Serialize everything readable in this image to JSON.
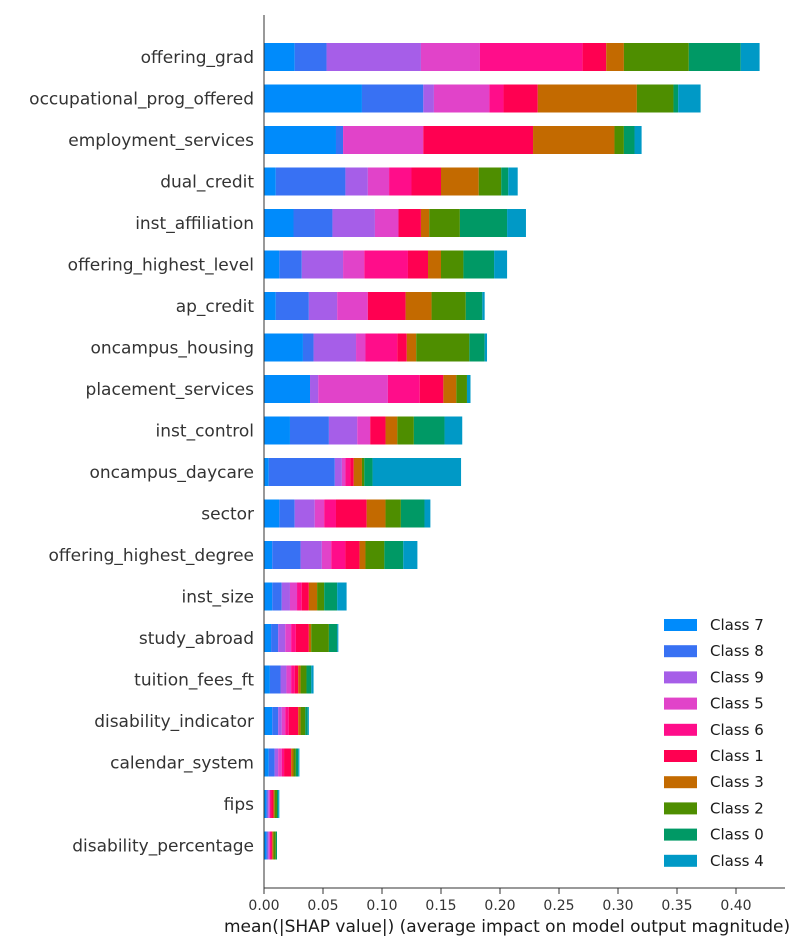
{
  "chart_data": {
    "type": "bar",
    "orientation": "horizontal",
    "stacked": true,
    "title": "",
    "xlabel": "mean(|SHAP value|) (average impact on model output magnitude)",
    "ylabel": "",
    "xlim": [
      0,
      0.44
    ],
    "x_ticks": [
      "0.00",
      "0.05",
      "0.10",
      "0.15",
      "0.20",
      "0.25",
      "0.30",
      "0.35",
      "0.40"
    ],
    "grid": false,
    "legend_position": "bottom-right",
    "categories": [
      "offering_grad",
      "occupational_prog_offered",
      "employment_services",
      "dual_credit",
      "inst_affiliation",
      "offering_highest_level",
      "ap_credit",
      "oncampus_housing",
      "placement_services",
      "inst_control",
      "oncampus_daycare",
      "sector",
      "offering_highest_degree",
      "inst_size",
      "study_abroad",
      "tuition_fees_ft",
      "disability_indicator",
      "calendar_system",
      "fips",
      "disability_percentage"
    ],
    "series": [
      {
        "name": "Class 7",
        "color": "#008bfb",
        "values": [
          0.026,
          0.083,
          0.061,
          0.01,
          0.025,
          0.013,
          0.01,
          0.033,
          0.039,
          0.022,
          0.004,
          0.013,
          0.007,
          0.007,
          0.006,
          0.005,
          0.007,
          0.004,
          0.002,
          0.002
        ]
      },
      {
        "name": "Class 8",
        "color": "#3871f3",
        "values": [
          0.027,
          0.052,
          0.006,
          0.059,
          0.033,
          0.019,
          0.028,
          0.009,
          0.0,
          0.033,
          0.056,
          0.013,
          0.024,
          0.008,
          0.006,
          0.009,
          0.005,
          0.005,
          0.001,
          0.001
        ]
      },
      {
        "name": "Class 9",
        "color": "#a65ee8",
        "values": [
          0.08,
          0.009,
          0.0,
          0.019,
          0.036,
          0.035,
          0.024,
          0.036,
          0.007,
          0.024,
          0.006,
          0.017,
          0.018,
          0.007,
          0.006,
          0.005,
          0.003,
          0.003,
          0.001,
          0.001
        ]
      },
      {
        "name": "Class 5",
        "color": "#e143c9",
        "values": [
          0.05,
          0.047,
          0.068,
          0.018,
          0.02,
          0.018,
          0.026,
          0.008,
          0.059,
          0.011,
          0.003,
          0.008,
          0.008,
          0.006,
          0.005,
          0.004,
          0.003,
          0.003,
          0.001,
          0.001
        ]
      },
      {
        "name": "Class 6",
        "color": "#ff0d8a",
        "values": [
          0.087,
          0.012,
          0.0,
          0.019,
          0.0,
          0.037,
          0.0,
          0.027,
          0.027,
          0.0,
          0.004,
          0.01,
          0.012,
          0.004,
          0.004,
          0.003,
          0.003,
          0.002,
          0.001,
          0.001
        ]
      },
      {
        "name": "Class 1",
        "color": "#ff0051",
        "values": [
          0.02,
          0.029,
          0.093,
          0.025,
          0.019,
          0.017,
          0.032,
          0.008,
          0.02,
          0.013,
          0.003,
          0.026,
          0.012,
          0.006,
          0.011,
          0.003,
          0.008,
          0.006,
          0.002,
          0.001
        ]
      },
      {
        "name": "Class 3",
        "color": "#c36a00",
        "values": [
          0.015,
          0.084,
          0.069,
          0.032,
          0.007,
          0.011,
          0.022,
          0.008,
          0.011,
          0.01,
          0.007,
          0.016,
          0.005,
          0.007,
          0.002,
          0.002,
          0.002,
          0.002,
          0.001,
          0.001
        ]
      },
      {
        "name": "Class 2",
        "color": "#4e8e00",
        "values": [
          0.055,
          0.031,
          0.008,
          0.019,
          0.026,
          0.019,
          0.029,
          0.045,
          0.009,
          0.014,
          0.002,
          0.013,
          0.016,
          0.006,
          0.015,
          0.005,
          0.004,
          0.002,
          0.002,
          0.002
        ]
      },
      {
        "name": "Class 0",
        "color": "#009965",
        "values": [
          0.044,
          0.004,
          0.009,
          0.006,
          0.04,
          0.026,
          0.014,
          0.013,
          0.0,
          0.026,
          0.007,
          0.02,
          0.016,
          0.011,
          0.007,
          0.004,
          0.002,
          0.002,
          0.001,
          0.001
        ]
      },
      {
        "name": "Class 4",
        "color": "#0099c6",
        "values": [
          0.016,
          0.019,
          0.006,
          0.008,
          0.016,
          0.011,
          0.002,
          0.002,
          0.003,
          0.015,
          0.075,
          0.005,
          0.012,
          0.008,
          0.001,
          0.002,
          0.001,
          0.001,
          0.001,
          0.0
        ]
      }
    ]
  }
}
